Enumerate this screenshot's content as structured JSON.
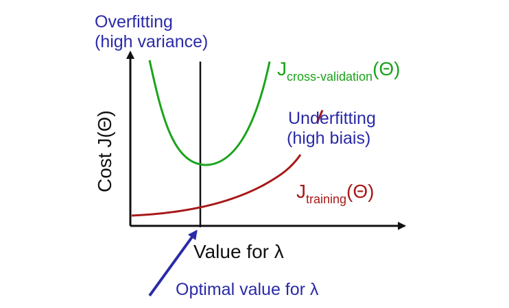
{
  "overfitting": {
    "title": "Overfitting",
    "note": "(high variance)"
  },
  "underfitting": {
    "title": "Underfitting",
    "note": "(high biais)"
  },
  "y_axis_label": "Cost J(Θ)",
  "x_axis_label": "Value for λ",
  "optimal_label": "Optimal value for λ",
  "cv_curve": {
    "main": "J",
    "subscript": "cross-validation",
    "suffix": "(Θ)"
  },
  "training_curve": {
    "main": "J",
    "subscript": "training",
    "suffix": "(Θ)"
  },
  "colors": {
    "cross_validation": "#1aa31a",
    "training": "#a81818",
    "annotation": "#2a2aa8",
    "axes": "#111111"
  }
}
